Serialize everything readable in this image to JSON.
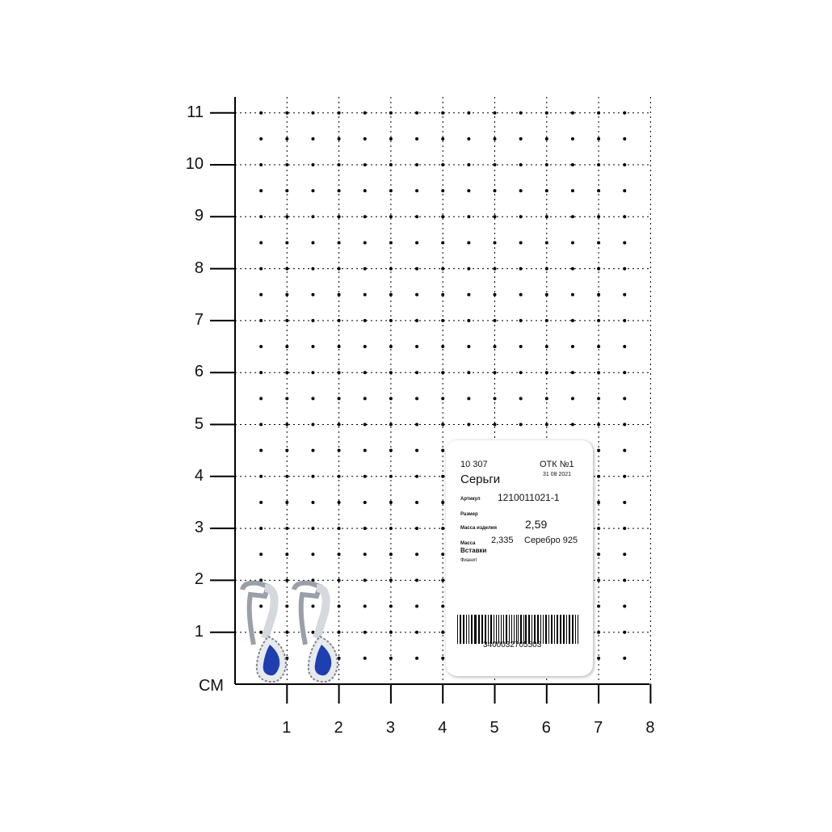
{
  "axis": {
    "unit_label": "СМ",
    "y_ticks": [
      "1",
      "2",
      "3",
      "4",
      "5",
      "6",
      "7",
      "8",
      "9",
      "10",
      "11"
    ],
    "x_ticks": [
      "1",
      "2",
      "3",
      "4",
      "5",
      "6",
      "7",
      "8"
    ]
  },
  "tag": {
    "code": "10 307",
    "otk": "ОТК №1",
    "date": "31 08 2021",
    "title": "Серьги",
    "article_label": "Артикул",
    "article": "1210011021-1",
    "size_label": "Размер",
    "item_mass_label": "Масса изделия",
    "item_mass": "2,59",
    "mass_label": "Масса",
    "metal_mass": "2,335",
    "metal": "Серебро 925",
    "inserts_label": "Вставки",
    "inserts": "Фианит",
    "barcode": "3400032705503"
  },
  "colors": {
    "stone": "#1f3fb0",
    "metal": "#c8cbd0"
  }
}
